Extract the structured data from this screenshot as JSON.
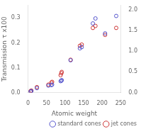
{
  "chart_data": {
    "type": "scatter",
    "xlabel": "Atomic weight",
    "ylabel": "Transmission τ x100",
    "xlim": [
      0,
      250
    ],
    "xticks": [
      0,
      50,
      100,
      150,
      200,
      250
    ],
    "ylim": [
      0,
      0.35
    ],
    "yticks": [
      {
        "value": 0.0,
        "label": "0.0"
      },
      0.1,
      0.2,
      0.3
    ],
    "y2lim": [
      0,
      2.1
    ],
    "y2ticks": [
      {
        "value": 0.0,
        "label": "0.0"
      },
      0.5,
      {
        "value": 1.0,
        "label": "1.0"
      },
      1.5,
      {
        "value": 2.0,
        "label": "2.0"
      }
    ],
    "grid": false,
    "legend": "lower right",
    "series": [
      {
        "name": "standard cones",
        "color": "#5555cc",
        "x": [
          7,
          9,
          24,
          55,
          63,
          65,
          88,
          90,
          91,
          115,
          140,
          145,
          175,
          182,
          208,
          238
        ],
        "values": [
          0.004,
          0.006,
          0.018,
          0.028,
          0.03,
          0.032,
          0.046,
          0.048,
          0.05,
          0.13,
          0.178,
          0.183,
          0.278,
          0.298,
          0.238,
          0.308
        ]
      },
      {
        "name": "jet cones",
        "color": "#cc3333",
        "x": [
          7,
          9,
          24,
          55,
          63,
          65,
          88,
          90,
          91,
          115,
          140,
          145,
          175,
          182,
          208,
          238
        ],
        "values": [
          0.006,
          0.008,
          0.022,
          0.032,
          0.04,
          0.043,
          0.07,
          0.078,
          0.083,
          0.132,
          0.188,
          0.193,
          0.26,
          0.268,
          0.232,
          0.26
        ]
      }
    ]
  }
}
